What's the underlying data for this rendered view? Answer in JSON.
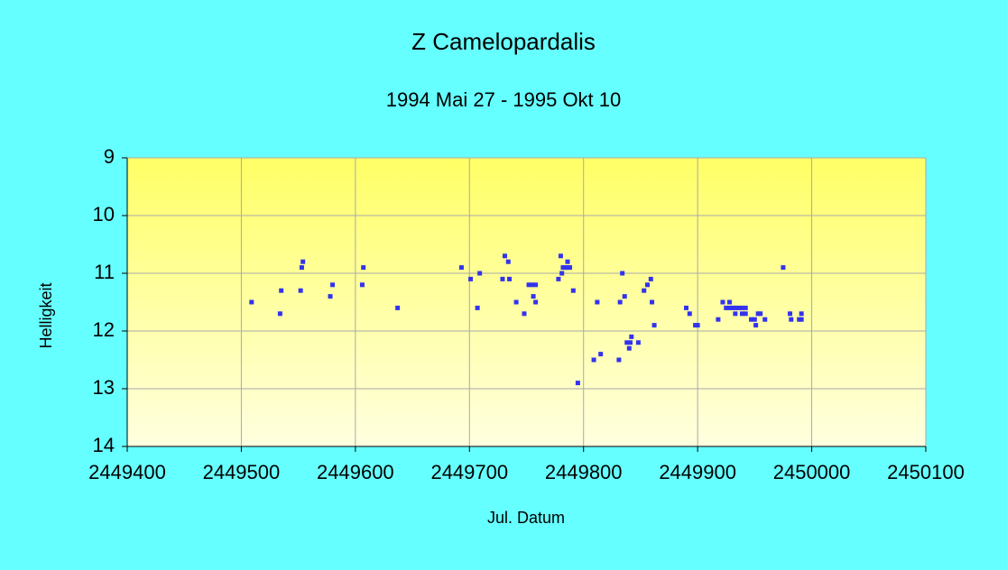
{
  "chart_data": {
    "type": "scatter",
    "title": "Z Camelopardalis",
    "subtitle": "1994 Mai 27 - 1995 Okt 10",
    "x_label": "Jul. Datum",
    "y_label": "Helligkeit",
    "x": [
      2449509,
      2449534,
      2449535,
      2449552,
      2449553,
      2449554,
      2449578,
      2449580,
      2449606,
      2449607,
      2449637,
      2449693,
      2449701,
      2449707,
      2449709,
      2449729,
      2449731,
      2449734,
      2449735,
      2449741,
      2449748,
      2449752,
      2449755,
      2449758,
      2449756,
      2449758,
      2449778,
      2449780,
      2449781,
      2449782,
      2449784,
      2449785,
      2449787,
      2449788,
      2449786,
      2449791,
      2449795,
      2449809,
      2449812,
      2449815,
      2449831,
      2449832,
      2449834,
      2449836,
      2449838,
      2449840,
      2449841,
      2449842,
      2449848,
      2449853,
      2449856,
      2449859,
      2449860,
      2449862,
      2449890,
      2449893,
      2449898,
      2449900,
      2449918,
      2449922,
      2449925,
      2449928,
      2449928,
      2449931,
      2449933,
      2449936,
      2449939,
      2449942,
      2449933,
      2449939,
      2449942,
      2449947,
      2449950,
      2449951,
      2449953,
      2449955,
      2449959,
      2449975,
      2449981,
      2449982,
      2449989,
      2449991,
      2449991
    ],
    "values": [
      11.5,
      11.7,
      11.3,
      11.3,
      10.9,
      10.8,
      11.4,
      11.2,
      11.2,
      10.9,
      11.6,
      10.9,
      11.1,
      11.6,
      11.0,
      11.1,
      10.7,
      10.8,
      11.1,
      11.5,
      11.7,
      11.2,
      11.2,
      11.2,
      11.4,
      11.5,
      11.1,
      10.7,
      11.0,
      10.9,
      10.9,
      10.9,
      10.9,
      10.9,
      10.8,
      11.3,
      12.9,
      12.5,
      11.5,
      12.4,
      12.5,
      11.5,
      11.0,
      11.4,
      12.2,
      12.3,
      12.2,
      12.1,
      12.2,
      11.3,
      11.2,
      11.1,
      11.5,
      11.9,
      11.6,
      11.7,
      11.9,
      11.9,
      11.8,
      11.5,
      11.6,
      11.6,
      11.5,
      11.6,
      11.6,
      11.6,
      11.6,
      11.6,
      11.7,
      11.7,
      11.7,
      11.8,
      11.8,
      11.9,
      11.7,
      11.7,
      11.8,
      10.9,
      11.7,
      11.8,
      11.8,
      11.8,
      11.7
    ],
    "color": "#3333ee",
    "xlim": [
      2449400,
      2450100
    ],
    "xticks": [
      2449400,
      2449500,
      2449600,
      2449700,
      2449800,
      2449900,
      2450000,
      2450100
    ],
    "ylim": [
      9,
      14
    ],
    "yticks": [
      9,
      10,
      11,
      12,
      13,
      14
    ],
    "y_inverted": true,
    "grid": true
  }
}
